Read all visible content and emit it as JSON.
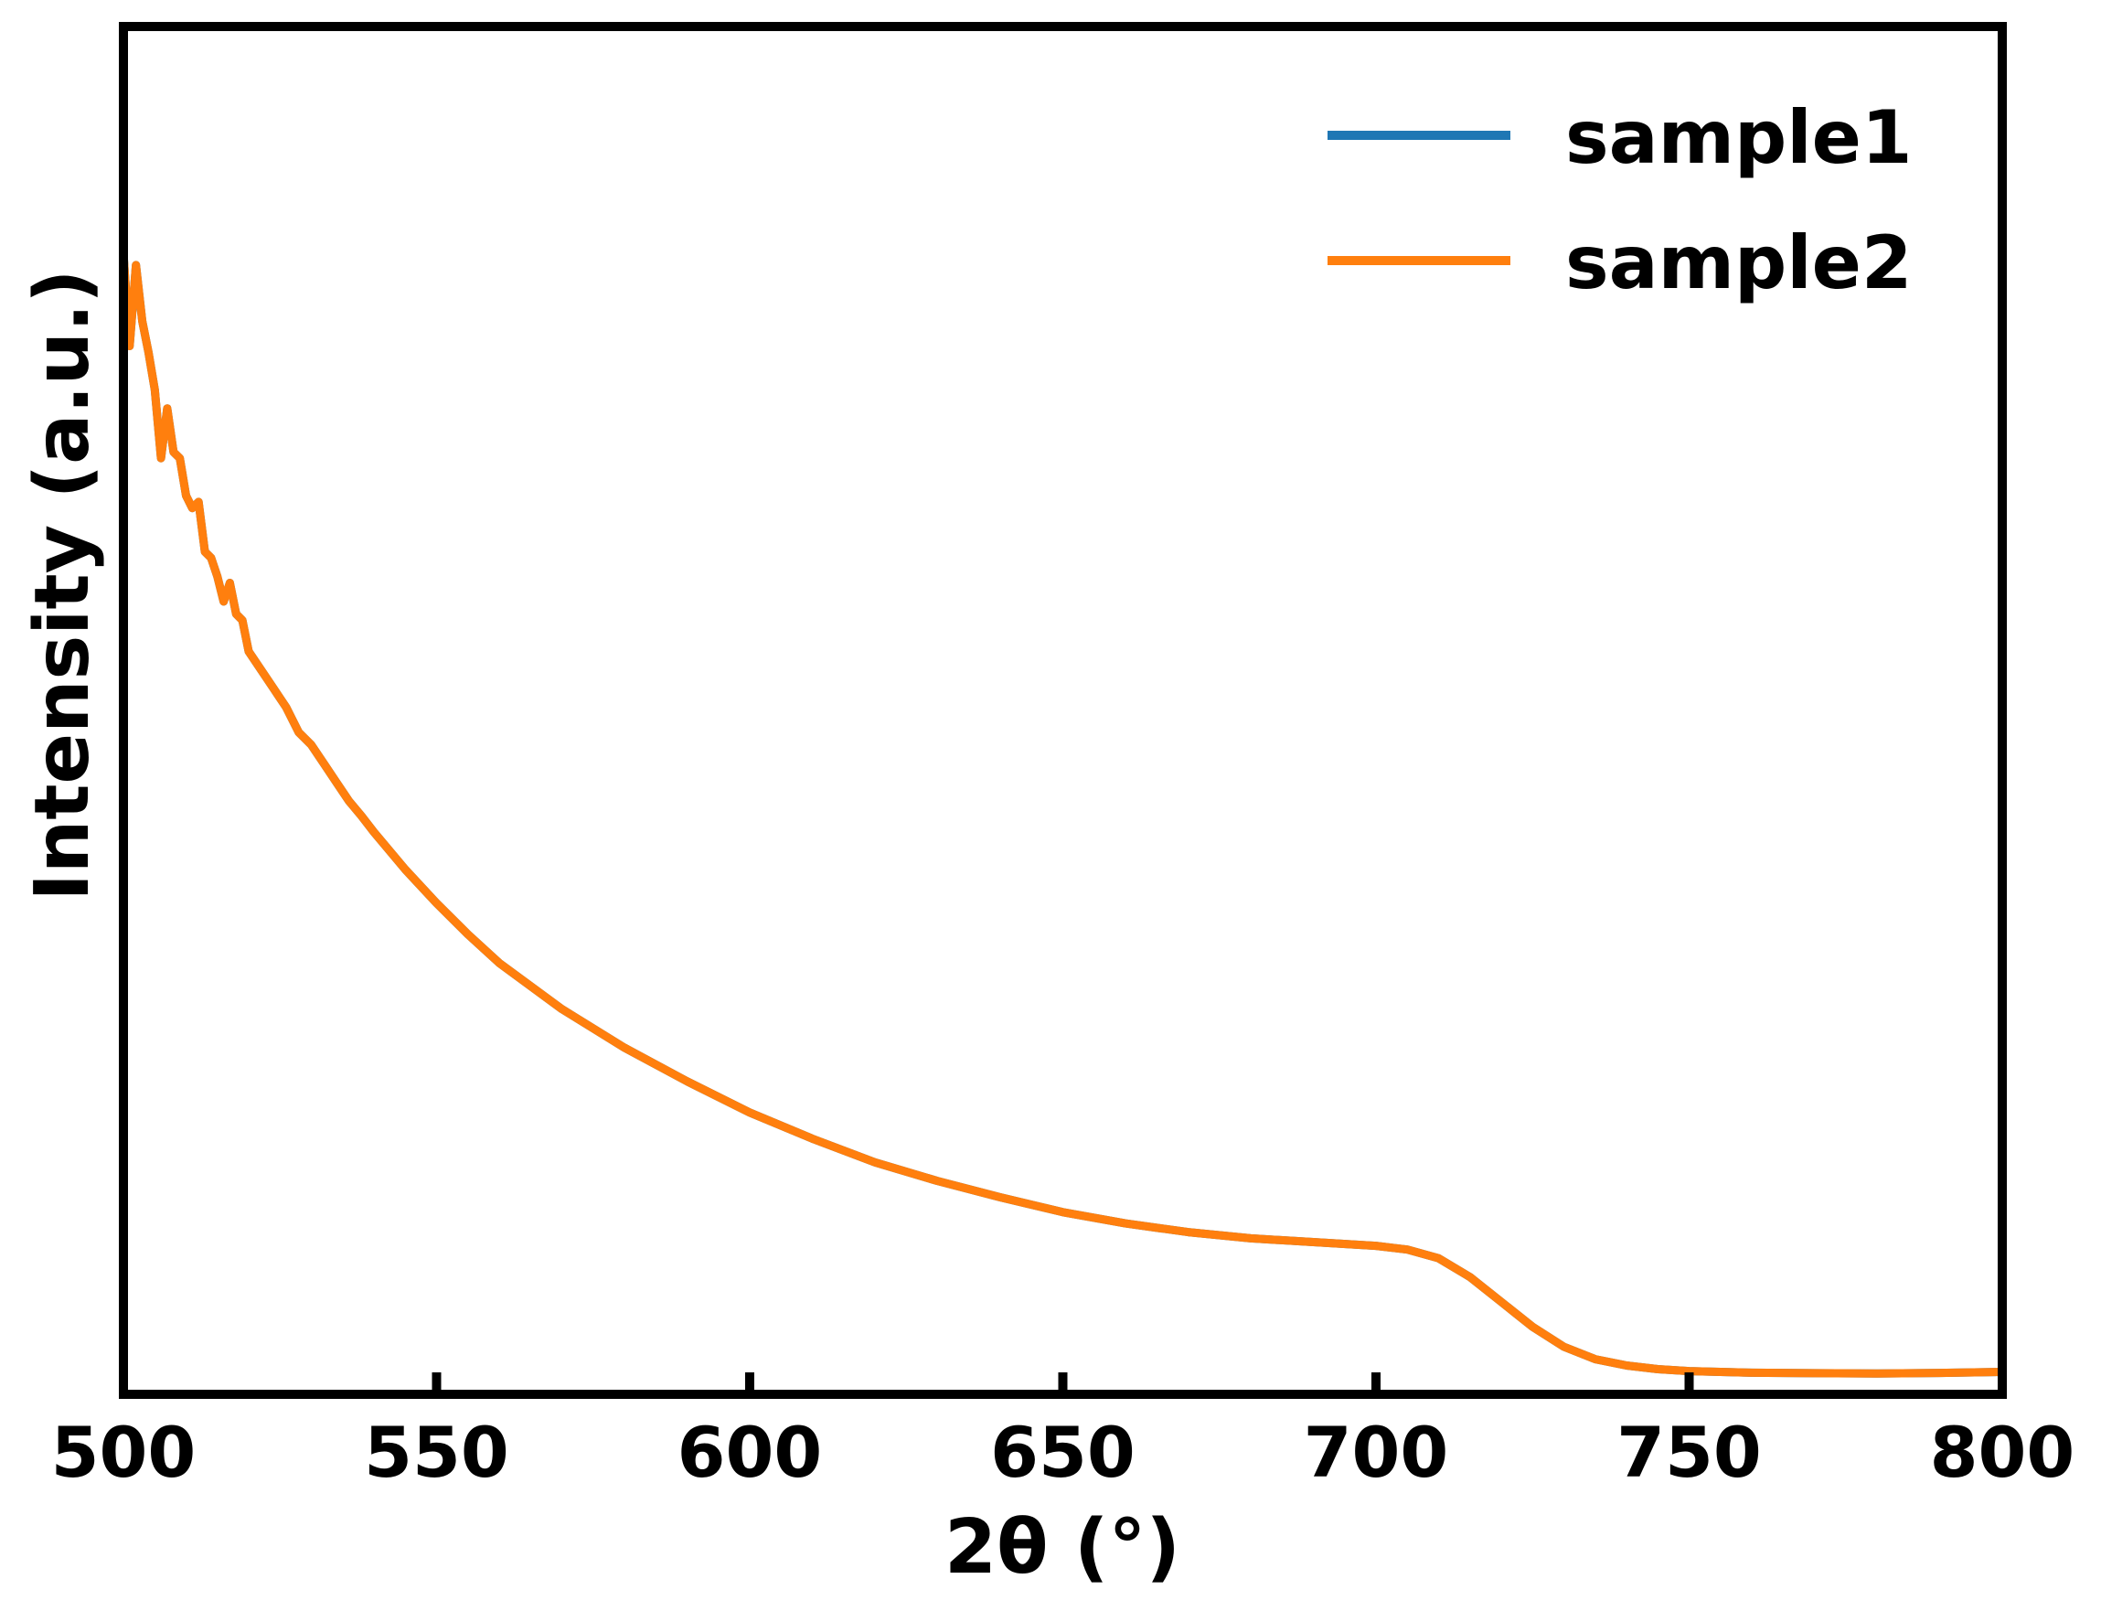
{
  "chart_data": {
    "type": "line",
    "xlabel": "2θ (°)",
    "ylabel": "Intensity (a.u.)",
    "xlim": [
      500,
      800
    ],
    "ylim": [
      0,
      100
    ],
    "xticks": [
      500,
      550,
      600,
      650,
      700,
      750,
      800
    ],
    "xtick_labels": [
      "500",
      "550",
      "600",
      "650",
      700,
      "750",
      "800"
    ],
    "yticks_visible": false,
    "grid": false,
    "legend": {
      "position": "top-right",
      "entries": [
        "sample1",
        "sample2"
      ]
    },
    "series": [
      {
        "name": "sample1",
        "color": "#1f77b4",
        "x": [
          500,
          501,
          502,
          503,
          504,
          505,
          506,
          507,
          508,
          509,
          510,
          511,
          512,
          513,
          514,
          515,
          516,
          517,
          518,
          519,
          520,
          522,
          524,
          526,
          528,
          530,
          532,
          534,
          536,
          538,
          540,
          545,
          550,
          555,
          560,
          570,
          580,
          590,
          600,
          610,
          620,
          630,
          640,
          650,
          660,
          670,
          680,
          690,
          700,
          705,
          710,
          715,
          720,
          725,
          730,
          735,
          740,
          745,
          750,
          760,
          770,
          780,
          790,
          800
        ],
        "y": [
          90.0,
          82.5,
          89.0,
          84.5,
          82.0,
          79.0,
          73.5,
          77.5,
          74.0,
          73.5,
          70.5,
          69.5,
          70.0,
          66.0,
          65.5,
          64.0,
          62.0,
          63.5,
          61.0,
          60.5,
          58.0,
          56.5,
          55.0,
          53.5,
          51.5,
          50.5,
          49.0,
          47.5,
          46.0,
          44.8,
          43.5,
          40.5,
          37.8,
          35.3,
          33.0,
          29.3,
          26.2,
          23.5,
          21.0,
          18.9,
          17.0,
          15.5,
          14.2,
          13.0,
          12.1,
          11.4,
          10.9,
          10.6,
          10.3,
          10.0,
          9.3,
          7.8,
          5.8,
          3.8,
          2.2,
          1.2,
          0.7,
          0.4,
          0.25,
          0.12,
          0.08,
          0.06,
          0.1,
          0.18
        ]
      },
      {
        "name": "sample2",
        "color": "#ff7f0e",
        "x": [
          500,
          501,
          502,
          503,
          504,
          505,
          506,
          507,
          508,
          509,
          510,
          511,
          512,
          513,
          514,
          515,
          516,
          517,
          518,
          519,
          520,
          522,
          524,
          526,
          528,
          530,
          532,
          534,
          536,
          538,
          540,
          545,
          550,
          555,
          560,
          570,
          580,
          590,
          600,
          610,
          620,
          630,
          640,
          650,
          660,
          670,
          680,
          690,
          700,
          705,
          710,
          715,
          720,
          725,
          730,
          735,
          740,
          745,
          750,
          760,
          770,
          780,
          790,
          800
        ],
        "y": [
          90.0,
          82.5,
          89.0,
          84.5,
          82.0,
          79.0,
          73.5,
          77.5,
          74.0,
          73.5,
          70.5,
          69.5,
          70.0,
          66.0,
          65.5,
          64.0,
          62.0,
          63.5,
          61.0,
          60.5,
          58.0,
          56.5,
          55.0,
          53.5,
          51.5,
          50.5,
          49.0,
          47.5,
          46.0,
          44.8,
          43.5,
          40.5,
          37.8,
          35.3,
          33.0,
          29.3,
          26.2,
          23.5,
          21.0,
          18.9,
          17.0,
          15.5,
          14.2,
          13.0,
          12.1,
          11.4,
          10.9,
          10.6,
          10.3,
          10.0,
          9.3,
          7.8,
          5.8,
          3.8,
          2.2,
          1.2,
          0.7,
          0.4,
          0.25,
          0.12,
          0.08,
          0.06,
          0.1,
          0.18
        ]
      }
    ]
  }
}
